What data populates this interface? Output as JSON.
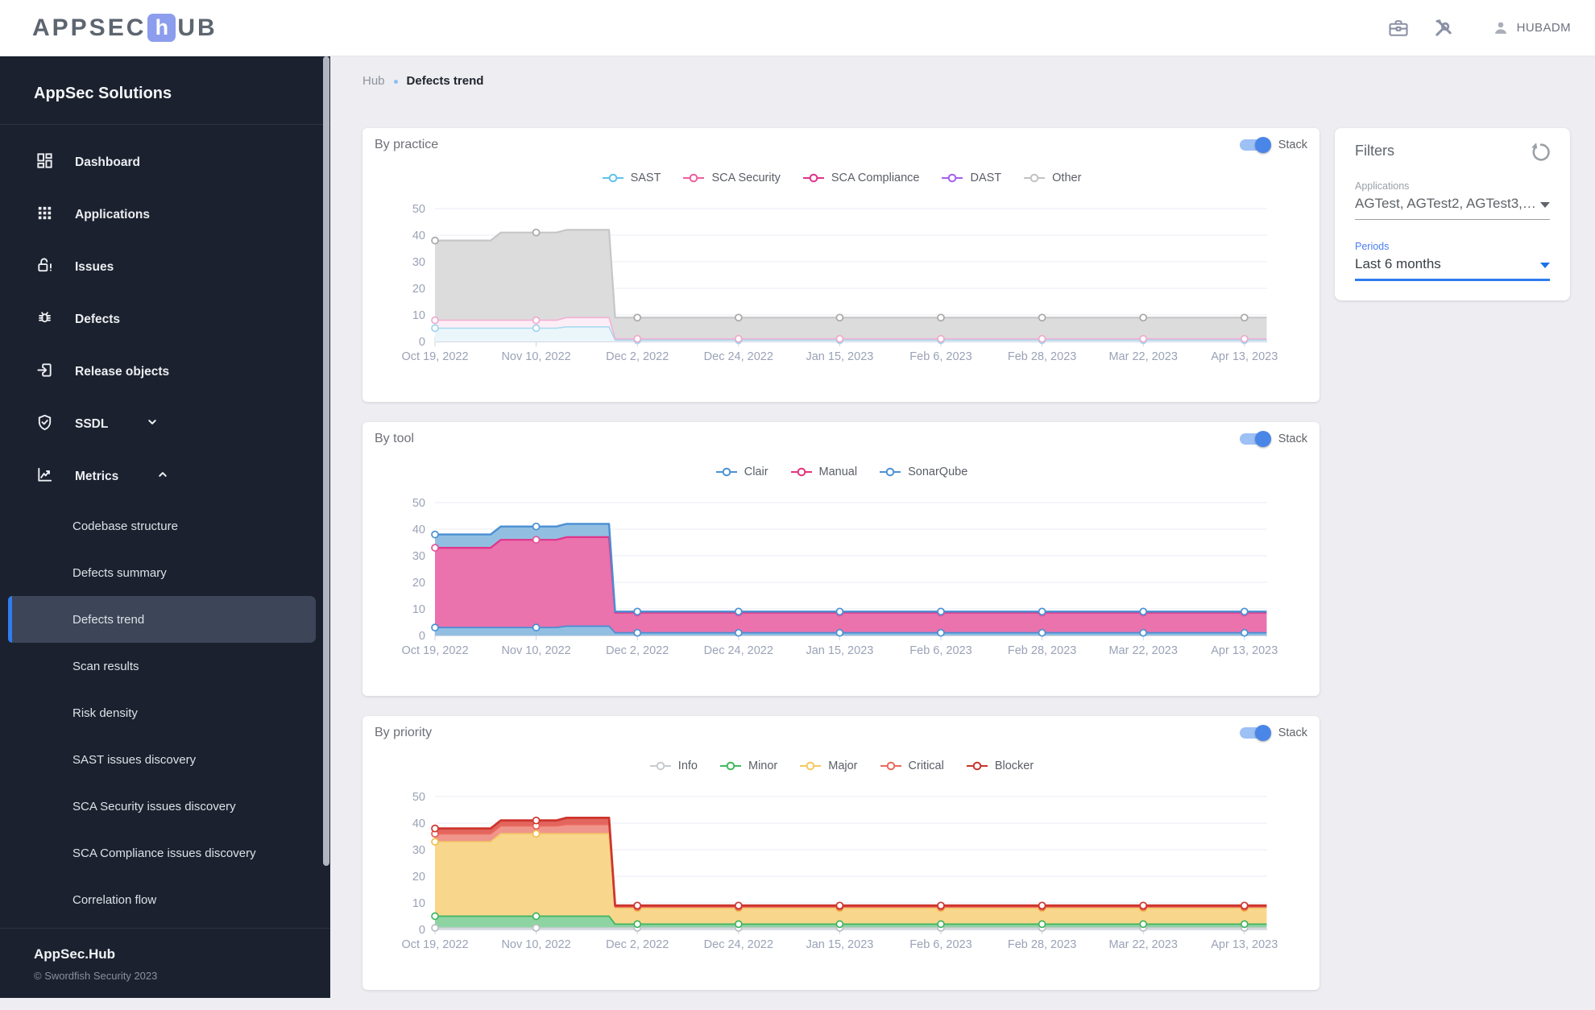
{
  "topbar": {
    "logo_pre": "APPSEC",
    "logo_mid": "h",
    "logo_post": "UB",
    "user": "HUBADM"
  },
  "breadcrumb": {
    "root": "Hub",
    "current": "Defects trend"
  },
  "sidebar": {
    "heading": "AppSec Solutions",
    "items": [
      {
        "label": "Dashboard",
        "icon": "dashboard-icon"
      },
      {
        "label": "Applications",
        "icon": "apps-icon"
      },
      {
        "label": "Issues",
        "icon": "lock-open-icon"
      },
      {
        "label": "Defects",
        "icon": "bug-icon"
      },
      {
        "label": "Release objects",
        "icon": "exit-to-app-icon"
      },
      {
        "label": "SSDL",
        "icon": "shield-check-icon"
      },
      {
        "label": "Metrics",
        "icon": "chart-line-icon"
      }
    ],
    "sub_items": [
      {
        "label": "Codebase structure"
      },
      {
        "label": "Defects summary"
      },
      {
        "label": "Defects trend",
        "selected": true
      },
      {
        "label": "Scan results"
      },
      {
        "label": "Risk density"
      },
      {
        "label": "SAST issues discovery"
      },
      {
        "label": "SCA Security issues discovery"
      },
      {
        "label": "SCA Compliance issues discovery"
      },
      {
        "label": "Correlation flow"
      }
    ],
    "footer_title": "AppSec.Hub",
    "footer_copyright": "© Swordfish Security 2023"
  },
  "filters": {
    "title": "Filters",
    "applications_label": "Applications",
    "applications_value": "AGTest, AGTest2, AGTest3, AG...",
    "periods_label": "Periods",
    "periods_value": "Last 6 months"
  },
  "colors": {
    "accent_blue": "#2f7df0",
    "toggle_track": "#9dc0f5",
    "toggle_thumb": "#4a86e8",
    "sidebar_bg": "#1b212e",
    "selected_item_bg": "#3c4658"
  },
  "charts": [
    {
      "title": "By practice",
      "stack_label": "Stack",
      "chart_data": {
        "type": "area",
        "stacked": true,
        "x_labels": [
          "Oct 19, 2022",
          "Nov 10, 2022",
          "Dec 2, 2022",
          "Dec 24, 2022",
          "Jan 15, 2023",
          "Feb 6, 2023",
          "Feb 28, 2023",
          "Mar 22, 2023",
          "Apr 13, 2023"
        ],
        "y_ticks": [
          0,
          10,
          20,
          30,
          40,
          50
        ],
        "ylim": [
          0,
          50
        ],
        "legend": [
          {
            "name": "SAST",
            "color": "#5fc3ea"
          },
          {
            "name": "SCA Security",
            "color": "#ee5f9f"
          },
          {
            "name": "SCA Compliance",
            "color": "#e03389"
          },
          {
            "name": "DAST",
            "color": "#a55ef1"
          },
          {
            "name": "Other",
            "color": "#c2c2c2"
          }
        ],
        "series": [
          {
            "name": "SAST",
            "values": [
              5,
              5,
              0.5,
              0.5,
              0.5,
              0.5,
              0.5,
              0.5,
              0.5
            ]
          },
          {
            "name": "SCA Security",
            "values": [
              3,
              3,
              0.5,
              0.5,
              0.5,
              0.5,
              0.5,
              0.5,
              0.5
            ]
          },
          {
            "name": "SCA Compliance",
            "values": [
              0,
              0,
              0,
              0,
              0,
              0,
              0,
              0,
              0
            ]
          },
          {
            "name": "DAST",
            "values": [
              0,
              0,
              0,
              0,
              0,
              0,
              0,
              0,
              0
            ]
          },
          {
            "name": "Other",
            "values": [
              30,
              33,
              8,
              8,
              8,
              8,
              8,
              8,
              8
            ]
          }
        ],
        "xpts": [
          0,
          0.55,
          0.65,
          1,
          1.2,
          1.3,
          1.72,
          1.78,
          2,
          3,
          4,
          5,
          6,
          7,
          8,
          8.22
        ],
        "bands": [
          {
            "name": "SAST",
            "stroke": "#a8d9ef",
            "fill": "#ebf6fb",
            "marker": "#9fd4ee",
            "w": 1.6,
            "tops": [
              5,
              5,
              5,
              5,
              5,
              5.5,
              5.5,
              0.5,
              0.5,
              0.5,
              0.5,
              0.5,
              0.5,
              0.5,
              0.5,
              0.5
            ],
            "markers": [
              5,
              5,
              0.5,
              0.5,
              0.5,
              0.5,
              0.5,
              0.5,
              0.5
            ]
          },
          {
            "name": "SCA",
            "stroke": "#f3b1d3",
            "fill": "#fceef6",
            "marker": "#eeaacd",
            "w": 1.6,
            "tops": [
              8,
              8,
              8,
              8,
              8,
              9,
              9,
              1,
              1,
              1,
              1,
              1,
              1,
              1,
              1,
              1
            ],
            "markers": [
              8,
              8,
              1,
              1,
              1,
              1,
              1,
              1,
              1
            ]
          },
          {
            "name": "Other",
            "stroke": "#c6c6c6",
            "fill": "#dcdcdc",
            "marker": "#a8a8a8",
            "w": 2.2,
            "tops": [
              38,
              38,
              41,
              41,
              41,
              42,
              42,
              9,
              9,
              9,
              9,
              9,
              9,
              9,
              9,
              9
            ],
            "markers": [
              38,
              41,
              9,
              9,
              9,
              9,
              9,
              9,
              9
            ]
          }
        ]
      }
    },
    {
      "title": "By tool",
      "stack_label": "Stack",
      "chart_data": {
        "type": "area",
        "stacked": true,
        "x_labels": [
          "Oct 19, 2022",
          "Nov 10, 2022",
          "Dec 2, 2022",
          "Dec 24, 2022",
          "Jan 15, 2023",
          "Feb 6, 2023",
          "Feb 28, 2023",
          "Mar 22, 2023",
          "Apr 13, 2023"
        ],
        "y_ticks": [
          0,
          10,
          20,
          30,
          40,
          50
        ],
        "ylim": [
          0,
          50
        ],
        "legend": [
          {
            "name": "Clair",
            "color": "#4d92d6"
          },
          {
            "name": "Manual",
            "color": "#e2337e"
          },
          {
            "name": "SonarQube",
            "color": "#4d92d6"
          }
        ],
        "series": [
          {
            "name": "Clair",
            "values": [
              3,
              3,
              1,
              1,
              1,
              1,
              1,
              1,
              1
            ]
          },
          {
            "name": "Manual",
            "values": [
              30,
              33,
              7.6,
              7.6,
              7.6,
              7.6,
              7.6,
              7.6,
              7.6
            ]
          },
          {
            "name": "SonarQube",
            "values": [
              5,
              5,
              0.4,
              0.4,
              0.4,
              0.4,
              0.4,
              0.4,
              0.4
            ]
          }
        ],
        "xpts": [
          0,
          0.55,
          0.65,
          1,
          1.2,
          1.3,
          1.72,
          1.78,
          2,
          3,
          4,
          5,
          6,
          7,
          8,
          8.22
        ],
        "bands": [
          {
            "name": "Clair",
            "stroke": "#4a8fd4",
            "fill": "#92bfe1",
            "marker": "#4a8fd4",
            "w": 1.8,
            "tops": [
              3,
              3,
              3,
              3,
              3,
              3.5,
              3.5,
              1,
              1,
              1,
              1,
              1,
              1,
              1,
              1,
              1
            ],
            "markers": [
              3,
              3,
              1,
              1,
              1,
              1,
              1,
              1,
              1
            ]
          },
          {
            "name": "Manual",
            "stroke": "#e0348a",
            "fill": "#ea72ad",
            "marker": "#e0559a",
            "w": 2.2,
            "tops": [
              33,
              33,
              36,
              36,
              36,
              37,
              37,
              8.6,
              8.6,
              8.6,
              8.6,
              8.6,
              8.6,
              8.6,
              8.6,
              8.6
            ],
            "markers": [
              33,
              36,
              8.6,
              8.6,
              8.6,
              8.6,
              8.6,
              8.6,
              8.6
            ]
          },
          {
            "name": "SonarQube",
            "stroke": "#4a8fd4",
            "fill": "#92bfe1",
            "marker": "#4a8fd4",
            "w": 2.4,
            "tops": [
              38,
              38,
              41,
              41,
              41,
              42,
              42,
              9,
              9,
              9,
              9,
              9,
              9,
              9,
              9,
              9
            ],
            "markers": [
              38,
              41,
              9,
              9,
              9,
              9,
              9,
              9,
              9
            ]
          }
        ]
      }
    },
    {
      "title": "By priority",
      "stack_label": "Stack",
      "chart_data": {
        "type": "area",
        "stacked": true,
        "x_labels": [
          "Oct 19, 2022",
          "Nov 10, 2022",
          "Dec 2, 2022",
          "Dec 24, 2022",
          "Jan 15, 2023",
          "Feb 6, 2023",
          "Feb 28, 2023",
          "Mar 22, 2023",
          "Apr 13, 2023"
        ],
        "y_ticks": [
          0,
          10,
          20,
          30,
          40,
          50
        ],
        "ylim": [
          0,
          50
        ],
        "legend": [
          {
            "name": "Info",
            "color": "#c6cbcf"
          },
          {
            "name": "Minor",
            "color": "#41b95e"
          },
          {
            "name": "Major",
            "color": "#f6c95f"
          },
          {
            "name": "Critical",
            "color": "#eb695d"
          },
          {
            "name": "Blocker",
            "color": "#cb332c"
          }
        ],
        "series": [
          {
            "name": "Info",
            "values": [
              0.6,
              0.6,
              0.6,
              0.6,
              0.6,
              0.6,
              0.6,
              0.6,
              0.6
            ]
          },
          {
            "name": "Minor",
            "values": [
              4.4,
              4.4,
              1.4,
              1.4,
              1.4,
              1.4,
              1.4,
              1.4,
              1.4
            ]
          },
          {
            "name": "Major",
            "values": [
              28,
              31,
              6,
              6,
              6,
              6,
              6,
              6,
              6
            ]
          },
          {
            "name": "Critical",
            "values": [
              3,
              3,
              0.5,
              0.5,
              0.5,
              0.5,
              0.5,
              0.5,
              0.5
            ]
          },
          {
            "name": "Blocker",
            "values": [
              2,
              2,
              0.5,
              0.5,
              0.5,
              0.5,
              0.5,
              0.5,
              0.5
            ]
          }
        ],
        "xpts": [
          0,
          0.55,
          0.65,
          1,
          1.2,
          1.3,
          1.72,
          1.78,
          2,
          3,
          4,
          5,
          6,
          7,
          8,
          8.22
        ],
        "bands": [
          {
            "name": "Info",
            "stroke": "#c9ced2",
            "fill": "#dfe2e4",
            "marker": "#b9bfc4",
            "w": 1.6,
            "tops": [
              0.6,
              0.6,
              0.6,
              0.6,
              0.6,
              0.6,
              0.6,
              0.6,
              0.6,
              0.6,
              0.6,
              0.6,
              0.6,
              0.6,
              0.6,
              0.6
            ],
            "markers": [
              0.6,
              0.6,
              0.6,
              0.6,
              0.6,
              0.6,
              0.6,
              0.6,
              0.6
            ]
          },
          {
            "name": "Minor",
            "stroke": "#3fb45f",
            "fill": "#8ed3a2",
            "marker": "#3fb45f",
            "w": 1.8,
            "tops": [
              5,
              5,
              5,
              5,
              5,
              5,
              5,
              2,
              2,
              2,
              2,
              2,
              2,
              2,
              2,
              2
            ],
            "markers": [
              5,
              5,
              2,
              2,
              2,
              2,
              2,
              2,
              2
            ]
          },
          {
            "name": "Major",
            "stroke": "#f3c969",
            "fill": "#f8d78d",
            "marker": "#f0bf4f",
            "w": 1.8,
            "tops": [
              33,
              33,
              36,
              36,
              36,
              36,
              36,
              8,
              8,
              8,
              8,
              8,
              8,
              8,
              8,
              8
            ],
            "markers": [
              33,
              36,
              8,
              8,
              8,
              8,
              8,
              8,
              8
            ]
          },
          {
            "name": "Critical",
            "stroke": "#ea685c",
            "fill": "#f0958b",
            "marker": "#e85c50",
            "w": 1.8,
            "tops": [
              36,
              36,
              39,
              39,
              39,
              39.5,
              39.5,
              8.5,
              8.5,
              8.5,
              8.5,
              8.5,
              8.5,
              8.5,
              8.5,
              8.5
            ],
            "markers": [
              36,
              39,
              8.5,
              8.5,
              8.5,
              8.5,
              8.5,
              8.5,
              8.5
            ]
          },
          {
            "name": "Blocker",
            "stroke": "#ce352e",
            "fill": "#e2665e",
            "marker": "#ce352e",
            "w": 2.8,
            "tops": [
              38,
              38,
              41,
              41,
              41,
              42,
              42,
              9,
              9,
              9,
              9,
              9,
              9,
              9,
              9,
              9
            ],
            "markers": [
              38,
              41,
              9,
              9,
              9,
              9,
              9,
              9,
              9
            ]
          }
        ]
      }
    }
  ]
}
